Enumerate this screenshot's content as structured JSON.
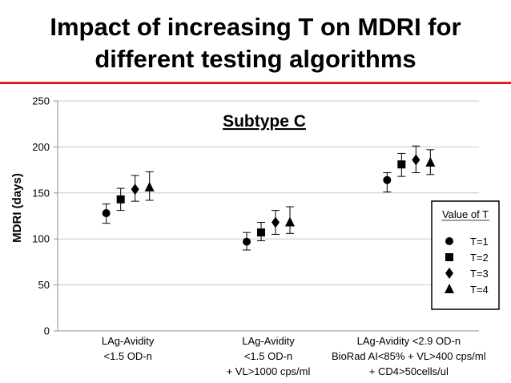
{
  "slide": {
    "title_line1": "Impact of increasing T on MDRI for",
    "title_line2": "different testing algorithms",
    "accent_color": "#e02020"
  },
  "chart_data": {
    "type": "scatter",
    "title": "Subtype C",
    "ylabel": "MDRI (days)",
    "xlabel": "",
    "ylim": [
      0,
      250
    ],
    "yticks": [
      0,
      50,
      100,
      150,
      200,
      250
    ],
    "grid": true,
    "legend_title": "Value of T",
    "legend_position": "right",
    "categories": [
      [
        "LAg-Avidity",
        "<1.5 OD-n"
      ],
      [
        "LAg-Avidity",
        "<1.5 OD-n",
        "+ VL>1000 cps/ml"
      ],
      [
        "LAg-Avidity <2.9 OD-n",
        "BioRad AI<85% + VL>400 cps/ml",
        "+ CD4>50cells/ul"
      ]
    ],
    "series": [
      {
        "name": "T=1",
        "marker": "circle",
        "values": [
          128,
          97,
          164
        ],
        "err_low": [
          117,
          88,
          151
        ],
        "err_high": [
          138,
          107,
          172
        ]
      },
      {
        "name": "T=2",
        "marker": "square",
        "values": [
          143,
          107,
          181
        ],
        "err_low": [
          131,
          98,
          168
        ],
        "err_high": [
          155,
          118,
          193
        ]
      },
      {
        "name": "T=3",
        "marker": "diamond",
        "values": [
          154,
          118,
          186
        ],
        "err_low": [
          141,
          105,
          172
        ],
        "err_high": [
          169,
          131,
          201
        ]
      },
      {
        "name": "T=4",
        "marker": "triangle",
        "values": [
          156,
          118,
          183
        ],
        "err_low": [
          142,
          106,
          170
        ],
        "err_high": [
          173,
          135,
          197
        ]
      }
    ]
  }
}
